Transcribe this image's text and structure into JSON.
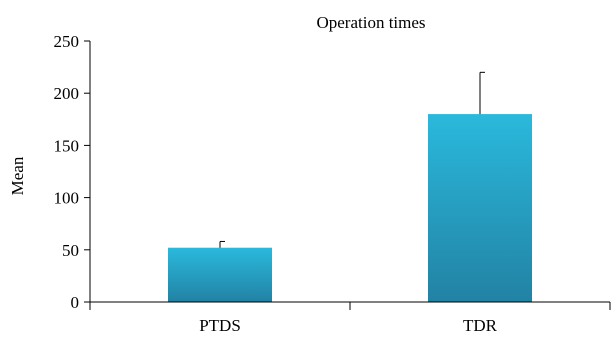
{
  "chart_data": {
    "type": "bar",
    "title": "Operation times",
    "xlabel": "",
    "ylabel": "Mean",
    "categories": [
      "PTDS",
      "TDR"
    ],
    "series": [
      {
        "values": [
          52,
          180
        ],
        "error_plus": [
          6,
          40
        ]
      }
    ],
    "ylim": [
      0,
      250
    ],
    "yticks": [
      0,
      50,
      100,
      150,
      200,
      250
    ],
    "grid": false,
    "legend": "none",
    "colors": {
      "bar_top": "#2ab9dc",
      "bar_bottom": "#2282a4",
      "axis": "#000000"
    }
  }
}
